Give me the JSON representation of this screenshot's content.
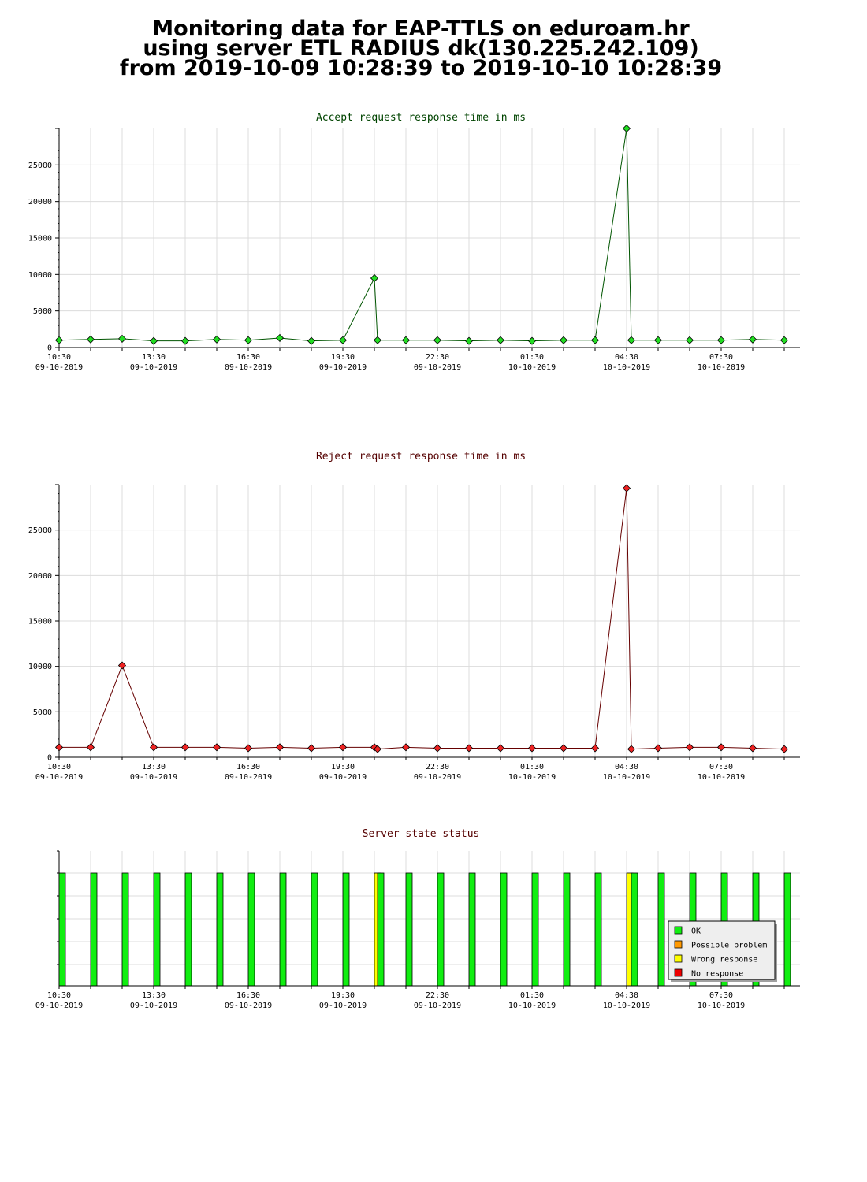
{
  "header": {
    "line1": "Monitoring data for EAP-TTLS on eduroam.hr",
    "line2": "using server ETL RADIUS dk(130.225.242.109)",
    "line3": "from 2019-10-09 10:28:39 to 2019-10-10 10:28:39"
  },
  "colors": {
    "accept_line": "#005500",
    "accept_marker": "#22dd22",
    "reject_line": "#660000",
    "reject_marker": "#ee2222",
    "title_accept": "#004400",
    "title_reject": "#550000",
    "ok": "#11ee11",
    "possible_problem": "#ff9900",
    "wrong_response": "#ffff00",
    "no_response": "#ee0000"
  },
  "chart_data": [
    {
      "id": "accept",
      "type": "line",
      "title": "Accept request response time in ms",
      "xlabel": "",
      "ylabel": "",
      "ylim": [
        0,
        30000
      ],
      "yticks": [
        0,
        5000,
        10000,
        15000,
        20000,
        25000
      ],
      "grid": true,
      "x_unit": "hours after 2019-10-09 10:30",
      "xticks": [
        {
          "label": "10:30",
          "date": "09-10-2019"
        },
        {
          "label": "13:30",
          "date": "09-10-2019"
        },
        {
          "label": "16:30",
          "date": "09-10-2019"
        },
        {
          "label": "19:30",
          "date": "09-10-2019"
        },
        {
          "label": "22:30",
          "date": "09-10-2019"
        },
        {
          "label": "01:30",
          "date": "10-10-2019"
        },
        {
          "label": "04:30",
          "date": "10-10-2019"
        },
        {
          "label": "07:30",
          "date": "10-10-2019"
        }
      ],
      "x": [
        0,
        1,
        2,
        3,
        4,
        5,
        6,
        7,
        8,
        9,
        10,
        10.1,
        11,
        12,
        13,
        14,
        15,
        16,
        17,
        18,
        18.15,
        19,
        20,
        21,
        22,
        23
      ],
      "values": [
        1000,
        1100,
        1200,
        900,
        900,
        1100,
        1000,
        1300,
        900,
        1000,
        9500,
        1000,
        1000,
        1000,
        900,
        1000,
        900,
        1000,
        1000,
        30000,
        1000,
        1000,
        1000,
        1000,
        1100,
        1000
      ]
    },
    {
      "id": "reject",
      "type": "line",
      "title": "Reject request response time in ms",
      "xlabel": "",
      "ylabel": "",
      "ylim": [
        0,
        30000
      ],
      "yticks": [
        0,
        5000,
        10000,
        15000,
        20000,
        25000
      ],
      "grid": true,
      "x_unit": "hours after 2019-10-09 10:30",
      "xticks": [
        {
          "label": "10:30",
          "date": "09-10-2019"
        },
        {
          "label": "13:30",
          "date": "09-10-2019"
        },
        {
          "label": "16:30",
          "date": "09-10-2019"
        },
        {
          "label": "19:30",
          "date": "09-10-2019"
        },
        {
          "label": "22:30",
          "date": "09-10-2019"
        },
        {
          "label": "01:30",
          "date": "10-10-2019"
        },
        {
          "label": "04:30",
          "date": "10-10-2019"
        },
        {
          "label": "07:30",
          "date": "10-10-2019"
        }
      ],
      "x": [
        0,
        1,
        2,
        3,
        4,
        5,
        6,
        7,
        8,
        9,
        10,
        10.1,
        11,
        12,
        13,
        14,
        15,
        16,
        17,
        18,
        18.15,
        19,
        20,
        21,
        22,
        23
      ],
      "values": [
        1100,
        1100,
        10100,
        1100,
        1100,
        1100,
        1000,
        1100,
        1000,
        1100,
        1100,
        900,
        1100,
        1000,
        1000,
        1000,
        1000,
        1000,
        1000,
        29600,
        900,
        1000,
        1100,
        1100,
        1000,
        900
      ]
    },
    {
      "id": "status",
      "type": "bar",
      "title": "Server state status",
      "xlabel": "",
      "ylabel": "",
      "grid": true,
      "legend_position": "bottom-right",
      "legend": [
        "OK",
        "Possible problem",
        "Wrong response",
        "No response"
      ],
      "xticks": [
        {
          "label": "10:30",
          "date": "09-10-2019"
        },
        {
          "label": "13:30",
          "date": "09-10-2019"
        },
        {
          "label": "16:30",
          "date": "09-10-2019"
        },
        {
          "label": "19:30",
          "date": "09-10-2019"
        },
        {
          "label": "22:30",
          "date": "09-10-2019"
        },
        {
          "label": "01:30",
          "date": "10-10-2019"
        },
        {
          "label": "04:30",
          "date": "10-10-2019"
        },
        {
          "label": "07:30",
          "date": "10-10-2019"
        }
      ],
      "x": [
        0,
        1,
        2,
        3,
        4,
        5,
        6,
        7,
        8,
        9,
        10,
        10.1,
        11,
        12,
        13,
        14,
        15,
        16,
        17,
        18,
        18.15,
        19,
        20,
        21,
        22,
        23
      ],
      "states": [
        "OK",
        "OK",
        "OK",
        "OK",
        "OK",
        "OK",
        "OK",
        "OK",
        "OK",
        "OK",
        "Wrong response",
        "OK",
        "OK",
        "OK",
        "OK",
        "OK",
        "OK",
        "OK",
        "OK",
        "Wrong response",
        "OK",
        "OK",
        "OK",
        "OK",
        "OK",
        "OK"
      ]
    }
  ]
}
